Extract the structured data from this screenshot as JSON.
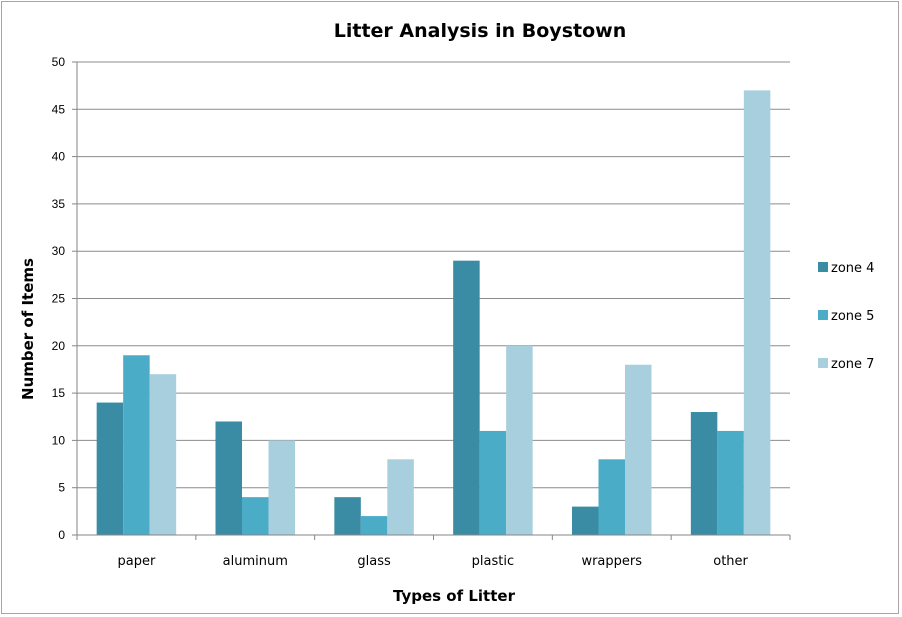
{
  "chart_data": {
    "type": "bar",
    "title": "Litter Analysis in Boystown",
    "xlabel": "Types of Litter",
    "ylabel": "Number of Items",
    "categories": [
      "paper",
      "aluminum",
      "glass",
      "plastic",
      "wrappers",
      "other"
    ],
    "series": [
      {
        "name": "zone 4",
        "values": [
          14,
          12,
          4,
          29,
          3,
          13
        ],
        "color": "#3a8ba4"
      },
      {
        "name": "zone 5",
        "values": [
          19,
          4,
          2,
          11,
          8,
          11
        ],
        "color": "#4aacc6"
      },
      {
        "name": "zone 7",
        "values": [
          17,
          10,
          8,
          20,
          18,
          47
        ],
        "color": "#a8cfdd"
      }
    ],
    "ylim": [
      0,
      50
    ],
    "yticks": [
      0,
      5,
      10,
      15,
      20,
      25,
      30,
      35,
      40,
      45,
      50
    ],
    "grid": true,
    "legend_position": "right"
  }
}
